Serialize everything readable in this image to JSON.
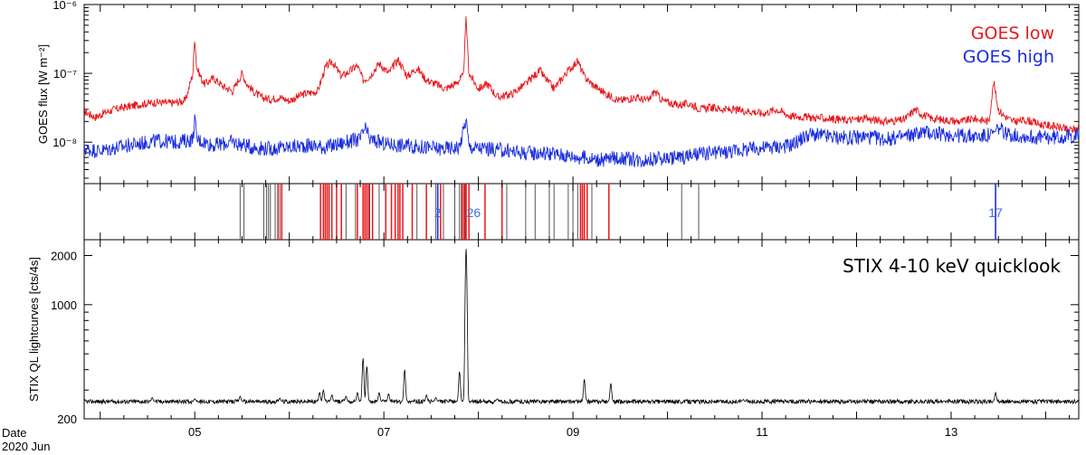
{
  "chart_data": [
    {
      "type": "line",
      "panel": "goes",
      "ylabel": "GOES flux [W m⁻²]",
      "yscale": "log",
      "ylim": [
        2.5e-09,
        1e-06
      ],
      "xlim": [
        3.83,
        14.35
      ],
      "grid": false,
      "legend_position": "top-right",
      "ytick_labels": [
        {
          "value": 1e-06,
          "label": "10⁻⁶"
        },
        {
          "value": 1e-07,
          "label": "10⁻⁷"
        },
        {
          "value": 1e-08,
          "label": "10⁻⁸"
        }
      ],
      "series": [
        {
          "name": "GOES low",
          "color": "#e8171b",
          "x": [
            3.83,
            3.95,
            4.05,
            4.15,
            4.3,
            4.45,
            4.6,
            4.75,
            4.9,
            4.98,
            5.0,
            5.02,
            5.1,
            5.2,
            5.3,
            5.4,
            5.5,
            5.55,
            5.62,
            5.7,
            5.8,
            5.9,
            6.0,
            6.15,
            6.3,
            6.38,
            6.45,
            6.55,
            6.65,
            6.72,
            6.78,
            6.85,
            6.95,
            7.05,
            7.15,
            7.25,
            7.35,
            7.45,
            7.55,
            7.65,
            7.75,
            7.84,
            7.87,
            7.9,
            8.0,
            8.1,
            8.2,
            8.35,
            8.5,
            8.65,
            8.72,
            8.8,
            8.95,
            9.05,
            9.12,
            9.2,
            9.35,
            9.5,
            9.65,
            9.8,
            9.86,
            9.95,
            10.1,
            10.25,
            10.35,
            10.45,
            10.6,
            10.75,
            10.9,
            11.0,
            11.15,
            11.3,
            11.5,
            11.7,
            11.9,
            12.1,
            12.3,
            12.5,
            12.62,
            12.7,
            12.8,
            12.95,
            13.1,
            13.25,
            13.4,
            13.45,
            13.5,
            13.55,
            13.65,
            13.8,
            13.95,
            14.1,
            14.25,
            14.35
          ],
          "y": [
            2.8e-08,
            2.3e-08,
            2.7e-08,
            3e-08,
            3.3e-08,
            3.6e-08,
            3.8e-08,
            3.7e-08,
            4e-08,
            1e-07,
            3.5e-07,
            1.2e-07,
            7e-08,
            8.5e-08,
            6.5e-08,
            5.5e-08,
            1e-07,
            7e-08,
            5.5e-08,
            4.5e-08,
            4.2e-08,
            4.5e-08,
            4e-08,
            5e-08,
            5.5e-08,
            1.2e-07,
            1.5e-07,
            9e-08,
            1.1e-07,
            1.3e-07,
            8e-08,
            9e-08,
            1.4e-07,
            1e-07,
            1.6e-07,
            9e-08,
            1.2e-07,
            8e-08,
            7e-08,
            6e-08,
            7e-08,
            9e-08,
            6.5e-07,
            1e-07,
            6e-08,
            7e-08,
            4.5e-08,
            5e-08,
            7e-08,
            1.1e-07,
            8e-08,
            6e-08,
            1.1e-07,
            1.5e-07,
            9e-08,
            7e-08,
            5e-08,
            4e-08,
            4.5e-08,
            4e-08,
            5.5e-08,
            4e-08,
            3.5e-08,
            3.6e-08,
            3e-08,
            3.2e-08,
            3e-08,
            2.9e-08,
            2.8e-08,
            2.6e-08,
            3e-08,
            2.4e-08,
            2.3e-08,
            2.2e-08,
            2.1e-08,
            2.2e-08,
            2e-08,
            2.1e-08,
            3e-08,
            2.5e-08,
            2.2e-08,
            2.1e-08,
            2e-08,
            2.2e-08,
            2e-08,
            7.5e-08,
            3e-08,
            2.5e-08,
            2e-08,
            2.1e-08,
            1.8e-08,
            1.7e-08,
            1.5e-08,
            1.6e-08
          ]
        },
        {
          "name": "GOES high",
          "color": "#1a2de0",
          "x": [
            3.83,
            4.0,
            4.2,
            4.4,
            4.6,
            4.8,
            4.98,
            5.0,
            5.02,
            5.2,
            5.4,
            5.6,
            5.8,
            6.0,
            6.2,
            6.4,
            6.6,
            6.75,
            6.8,
            6.85,
            7.0,
            7.2,
            7.4,
            7.6,
            7.8,
            7.87,
            7.9,
            8.1,
            8.3,
            8.5,
            8.7,
            8.9,
            9.1,
            9.3,
            9.5,
            9.7,
            9.9,
            10.1,
            10.3,
            10.5,
            10.7,
            10.9,
            11.1,
            11.3,
            11.5,
            11.7,
            11.9,
            12.1,
            12.3,
            12.5,
            12.7,
            12.9,
            13.1,
            13.3,
            13.45,
            13.5,
            13.6,
            13.8,
            14.0,
            14.2,
            14.35
          ],
          "y": [
            8e-09,
            7.5e-09,
            8.5e-09,
            9.5e-09,
            1.05e-08,
            1e-08,
            1.1e-08,
            2.3e-08,
            1.1e-08,
            9e-09,
            1e-08,
            8.5e-09,
            8e-09,
            8.5e-09,
            9e-09,
            8.5e-09,
            1e-08,
            1.1e-08,
            1.6e-08,
            1.1e-08,
            9.5e-09,
            9e-09,
            8.5e-09,
            8e-09,
            8.5e-09,
            2.2e-08,
            8.5e-09,
            8e-09,
            7.5e-09,
            7e-09,
            7e-09,
            6.5e-09,
            6e-09,
            5.5e-09,
            6e-09,
            5.5e-09,
            5.8e-09,
            6e-09,
            6.5e-09,
            7e-09,
            7.5e-09,
            8e-09,
            8.5e-09,
            9e-09,
            1.3e-08,
            1.2e-08,
            1.15e-08,
            1.2e-08,
            1.1e-08,
            1.2e-08,
            1.4e-08,
            1.3e-08,
            1.25e-08,
            1.2e-08,
            1.3e-08,
            1.6e-08,
            1.3e-08,
            1.2e-08,
            1.15e-08,
            1.2e-08,
            1.25e-08
          ]
        }
      ]
    },
    {
      "type": "event_markers",
      "panel": "markers",
      "gray_x": [
        5.48,
        5.52,
        5.73,
        5.76,
        5.78,
        5.8,
        5.85,
        5.9,
        6.4,
        6.55,
        6.6,
        6.7,
        6.85,
        6.88,
        6.95,
        7.35,
        7.55,
        7.63,
        7.75,
        7.8,
        7.82,
        7.86,
        8.3,
        8.5,
        8.6,
        8.75,
        8.8,
        8.95,
        9.0,
        9.05,
        9.15,
        9.2,
        10.15,
        10.33
      ],
      "red_x": [
        5.88,
        5.92,
        6.33,
        6.36,
        6.38,
        6.4,
        6.42,
        6.45,
        6.5,
        6.55,
        6.72,
        6.78,
        6.8,
        6.82,
        6.84,
        6.88,
        7.02,
        7.08,
        7.12,
        7.15,
        7.17,
        7.2,
        7.3,
        7.45,
        7.6,
        7.83,
        7.85,
        7.87,
        7.9,
        8.07,
        8.25,
        9.08,
        9.1,
        9.12,
        9.15,
        9.38
      ],
      "blue_x": [
        7.57,
        13.47
      ],
      "labels": [
        {
          "x": 7.57,
          "text": "2"
        },
        {
          "x": 7.95,
          "text": "26"
        },
        {
          "x": 13.47,
          "text": "17"
        }
      ],
      "gray_color": "#555555",
      "red_color": "#e8171b",
      "blue_color": "#1a2de0",
      "label_color": "#3f6ee0"
    },
    {
      "type": "line",
      "panel": "stix",
      "title": "STIX 4-10 keV quicklook",
      "ylabel": "STIX QL lightcurves [cts/4s]",
      "yscale": "log",
      "ylim": [
        200,
        2500
      ],
      "xlim": [
        3.83,
        14.35
      ],
      "grid": false,
      "ytick_labels": [
        {
          "value": 2000,
          "label": "2000"
        },
        {
          "value": 1000,
          "label": "1000"
        },
        {
          "value": 200,
          "label": "200"
        }
      ],
      "xlabel_lines": [
        "Date",
        "2020 Jun"
      ],
      "xtick_labels": [
        {
          "value": 5,
          "label": "05"
        },
        {
          "value": 7,
          "label": "07"
        },
        {
          "value": 9,
          "label": "09"
        },
        {
          "value": 11,
          "label": "11"
        },
        {
          "value": 13,
          "label": "13"
        }
      ],
      "series": [
        {
          "name": "",
          "color": "#000000",
          "baseline": 255,
          "spikes": [
            {
              "x": 4.55,
              "y": 270
            },
            {
              "x": 5.0,
              "y": 265
            },
            {
              "x": 5.48,
              "y": 275
            },
            {
              "x": 5.9,
              "y": 268
            },
            {
              "x": 6.32,
              "y": 290
            },
            {
              "x": 6.36,
              "y": 300
            },
            {
              "x": 6.45,
              "y": 280
            },
            {
              "x": 6.6,
              "y": 275
            },
            {
              "x": 6.72,
              "y": 290
            },
            {
              "x": 6.78,
              "y": 470
            },
            {
              "x": 6.82,
              "y": 420
            },
            {
              "x": 6.95,
              "y": 290
            },
            {
              "x": 7.05,
              "y": 285
            },
            {
              "x": 7.22,
              "y": 400
            },
            {
              "x": 7.45,
              "y": 280
            },
            {
              "x": 7.55,
              "y": 270
            },
            {
              "x": 7.8,
              "y": 390
            },
            {
              "x": 7.87,
              "y": 2200
            },
            {
              "x": 8.2,
              "y": 265
            },
            {
              "x": 9.12,
              "y": 350
            },
            {
              "x": 9.4,
              "y": 330
            },
            {
              "x": 10.8,
              "y": 262
            },
            {
              "x": 13.47,
              "y": 290
            }
          ]
        }
      ]
    }
  ],
  "legend": [
    {
      "label": "GOES low",
      "color": "#e8171b"
    },
    {
      "label": "GOES high",
      "color": "#1a2de0"
    }
  ]
}
